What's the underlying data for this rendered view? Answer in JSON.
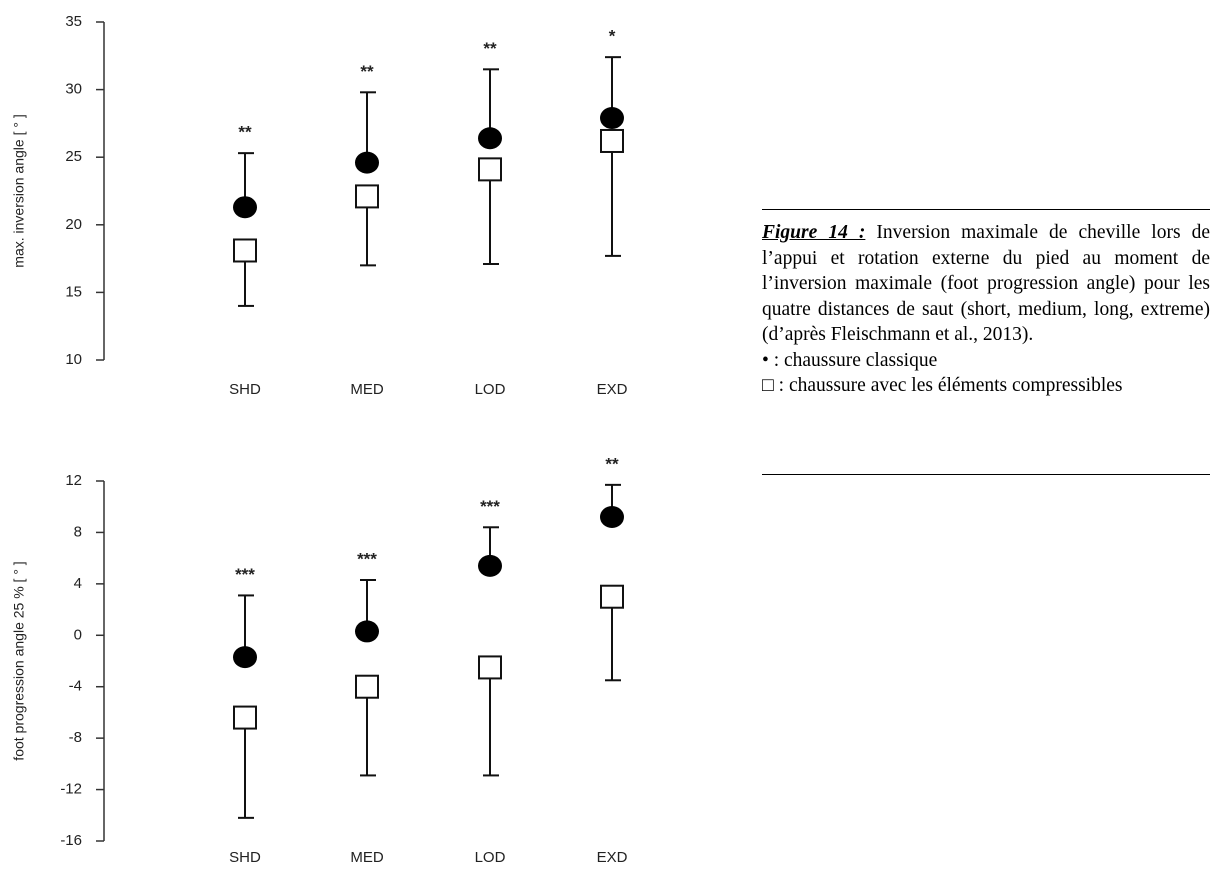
{
  "chart_data": [
    {
      "type": "errorbar-dot",
      "ylabel": "max. inversion angle [ ° ]",
      "categories": [
        "SHD",
        "MED",
        "LOD",
        "EXD"
      ],
      "ylim": [
        10,
        35
      ],
      "yticks": [
        10,
        15,
        20,
        25,
        30,
        35
      ],
      "series": [
        {
          "marker": "circle",
          "color": "#000000",
          "error_direction": "up",
          "values": [
            21.3,
            24.6,
            26.4,
            27.9
          ],
          "errors": [
            4.0,
            5.2,
            5.1,
            4.5
          ]
        },
        {
          "marker": "square",
          "color": "#ffffff",
          "error_direction": "down",
          "values": [
            18.1,
            22.1,
            24.1,
            26.2
          ],
          "errors": [
            4.1,
            5.1,
            7.0,
            8.5
          ]
        }
      ],
      "annotations": [
        "**",
        "**",
        "**",
        "*"
      ]
    },
    {
      "type": "errorbar-dot",
      "ylabel": "foot progression angle 25 % [ ° ]",
      "categories": [
        "SHD",
        "MED",
        "LOD",
        "EXD"
      ],
      "ylim": [
        -16,
        12
      ],
      "yticks": [
        -16,
        -12,
        -8,
        -4,
        0,
        4,
        8,
        12
      ],
      "series": [
        {
          "marker": "circle",
          "color": "#000000",
          "error_direction": "up",
          "values": [
            -1.7,
            0.3,
            5.4,
            9.2
          ],
          "errors": [
            4.8,
            4.0,
            3.0,
            2.5
          ]
        },
        {
          "marker": "square",
          "color": "#ffffff",
          "error_direction": "down",
          "values": [
            -6.4,
            -4.0,
            -2.5,
            3.0
          ],
          "errors": [
            7.8,
            6.9,
            8.4,
            6.5
          ]
        }
      ],
      "annotations": [
        "***",
        "***",
        "***",
        "**"
      ]
    }
  ],
  "caption": {
    "label": "Figure 14 :",
    "text": "Inversion maximale de cheville lors de l’appui et rotation externe du pied au moment de l’inversion maximale (foot progression angle) pour les quatre distances de saut (short, medium, long, extreme) (d’après Fleischmann et al., 2013).",
    "legend": [
      "• : chaussure classique",
      "□ : chaussure avec les éléments compressibles"
    ]
  }
}
